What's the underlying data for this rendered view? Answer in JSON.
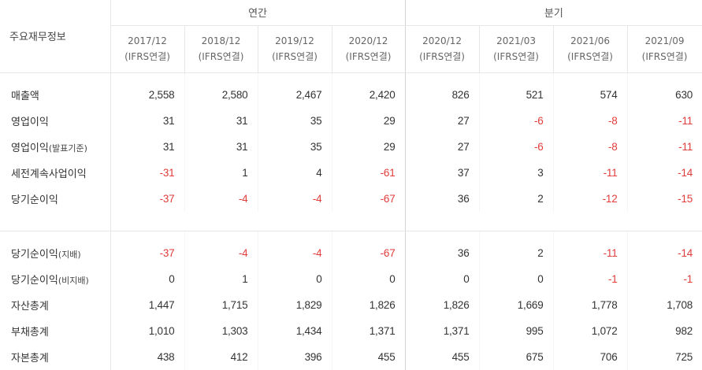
{
  "header": {
    "label": "주요재무정보",
    "groups": {
      "annual": "연간",
      "quarterly": "분기"
    },
    "periods": [
      {
        "date": "2017/12",
        "basis": "(IFRS연결)"
      },
      {
        "date": "2018/12",
        "basis": "(IFRS연결)"
      },
      {
        "date": "2019/12",
        "basis": "(IFRS연결)"
      },
      {
        "date": "2020/12",
        "basis": "(IFRS연결)"
      },
      {
        "date": "2020/12",
        "basis": "(IFRS연결)"
      },
      {
        "date": "2021/03",
        "basis": "(IFRS연결)"
      },
      {
        "date": "2021/06",
        "basis": "(IFRS연결)"
      },
      {
        "date": "2021/09",
        "basis": "(IFRS연결)"
      }
    ]
  },
  "rows": [
    {
      "label": "매출액",
      "values": [
        "2,558",
        "2,580",
        "2,467",
        "2,420",
        "826",
        "521",
        "574",
        "630"
      ]
    },
    {
      "label": "영업이익",
      "values": [
        "31",
        "31",
        "35",
        "29",
        "27",
        "-6",
        "-8",
        "-11"
      ]
    },
    {
      "label": "영업이익",
      "label_suffix": "(발표기준)",
      "values": [
        "31",
        "31",
        "35",
        "29",
        "27",
        "-6",
        "-8",
        "-11"
      ]
    },
    {
      "label": "세전계속사업이익",
      "values": [
        "-31",
        "1",
        "4",
        "-61",
        "37",
        "3",
        "-11",
        "-14"
      ]
    },
    {
      "label": "당기순이익",
      "values": [
        "-37",
        "-4",
        "-4",
        "-67",
        "36",
        "2",
        "-12",
        "-15"
      ]
    },
    {
      "label": "당기순이익",
      "label_suffix": "(지배)",
      "values": [
        "-37",
        "-4",
        "-4",
        "-67",
        "36",
        "2",
        "-11",
        "-14"
      ]
    },
    {
      "label": "당기순이익",
      "label_suffix": "(비지배)",
      "values": [
        "0",
        "1",
        "0",
        "0",
        "0",
        "0",
        "-1",
        "-1"
      ]
    },
    {
      "label": "자산총계",
      "values": [
        "1,447",
        "1,715",
        "1,829",
        "1,826",
        "1,826",
        "1,669",
        "1,778",
        "1,708"
      ]
    },
    {
      "label": "부채총계",
      "values": [
        "1,010",
        "1,303",
        "1,434",
        "1,371",
        "1,371",
        "995",
        "1,072",
        "982"
      ]
    },
    {
      "label": "자본총계",
      "values": [
        "438",
        "412",
        "396",
        "455",
        "455",
        "675",
        "706",
        "725"
      ]
    }
  ],
  "colors": {
    "negative": "#e23b3b",
    "text": "#333333",
    "border": "#e6e6e6"
  }
}
